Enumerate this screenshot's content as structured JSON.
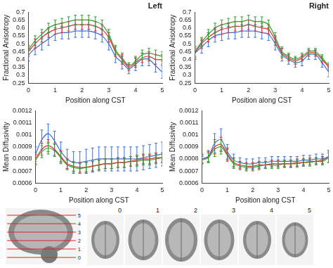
{
  "chart_data": [
    {
      "type": "line",
      "title": "Left",
      "xlabel": "Position along CST",
      "ylabel": "Fractional Anisotropy",
      "grid": false,
      "x": [
        0,
        0.25,
        0.5,
        0.75,
        1,
        1.25,
        1.5,
        1.75,
        2,
        2.25,
        2.5,
        2.75,
        3,
        3.25,
        3.5,
        3.75,
        4,
        4.25,
        4.5,
        4.75,
        5
      ],
      "xlim": [
        0,
        5
      ],
      "xticks": [
        0,
        1,
        2,
        3,
        4,
        5
      ],
      "ylim": [
        0.25,
        0.7
      ],
      "yticks": [
        0.25,
        0.3,
        0.35,
        0.4,
        0.45,
        0.5,
        0.55,
        0.6,
        0.65,
        0.7
      ],
      "series": [
        {
          "color": "#3a6fd8",
          "values": [
            0.43,
            0.47,
            0.5,
            0.53,
            0.56,
            0.57,
            0.57,
            0.58,
            0.58,
            0.58,
            0.57,
            0.55,
            0.5,
            0.42,
            0.38,
            0.34,
            0.37,
            0.4,
            0.4,
            0.36,
            0.32
          ],
          "error": [
            0.04,
            0.04,
            0.04,
            0.04,
            0.04,
            0.04,
            0.04,
            0.04,
            0.04,
            0.04,
            0.04,
            0.04,
            0.04,
            0.04,
            0.04,
            0.03,
            0.04,
            0.04,
            0.04,
            0.04,
            0.04
          ]
        },
        {
          "color": "#e03030",
          "values": [
            0.45,
            0.5,
            0.54,
            0.57,
            0.59,
            0.6,
            0.61,
            0.62,
            0.62,
            0.62,
            0.61,
            0.59,
            0.54,
            0.45,
            0.4,
            0.35,
            0.38,
            0.41,
            0.42,
            0.4,
            0.4
          ],
          "error": [
            0.03,
            0.03,
            0.03,
            0.03,
            0.03,
            0.03,
            0.03,
            0.03,
            0.03,
            0.03,
            0.03,
            0.03,
            0.03,
            0.03,
            0.03,
            0.02,
            0.03,
            0.03,
            0.03,
            0.03,
            0.03
          ]
        },
        {
          "color": "#2e9e2e",
          "values": [
            0.46,
            0.52,
            0.56,
            0.6,
            0.62,
            0.63,
            0.64,
            0.65,
            0.65,
            0.65,
            0.64,
            0.62,
            0.56,
            0.46,
            0.41,
            0.36,
            0.39,
            0.43,
            0.44,
            0.43,
            0.42
          ],
          "error": [
            0.03,
            0.03,
            0.03,
            0.03,
            0.03,
            0.03,
            0.03,
            0.03,
            0.03,
            0.03,
            0.03,
            0.03,
            0.03,
            0.03,
            0.03,
            0.02,
            0.03,
            0.03,
            0.03,
            0.03,
            0.03
          ]
        }
      ]
    },
    {
      "type": "line",
      "title": "Right",
      "xlabel": "Position along CST",
      "ylabel": "Fractional Anisotropy",
      "grid": false,
      "x": [
        0,
        0.25,
        0.5,
        0.75,
        1,
        1.25,
        1.5,
        1.75,
        2,
        2.25,
        2.5,
        2.75,
        3,
        3.25,
        3.5,
        3.75,
        4,
        4.25,
        4.5,
        4.75,
        5
      ],
      "xlim": [
        0,
        5
      ],
      "xticks": [
        0,
        1,
        2,
        3,
        4,
        5
      ],
      "ylim": [
        0.25,
        0.7
      ],
      "yticks": [
        0.25,
        0.3,
        0.35,
        0.4,
        0.45,
        0.5,
        0.55,
        0.6,
        0.65,
        0.7
      ],
      "series": [
        {
          "color": "#3a6fd8",
          "values": [
            0.44,
            0.48,
            0.52,
            0.55,
            0.56,
            0.57,
            0.57,
            0.58,
            0.58,
            0.58,
            0.57,
            0.56,
            0.5,
            0.43,
            0.4,
            0.38,
            0.39,
            0.43,
            0.43,
            0.38,
            0.32
          ],
          "error": [
            0.04,
            0.04,
            0.04,
            0.04,
            0.04,
            0.04,
            0.04,
            0.04,
            0.04,
            0.04,
            0.04,
            0.04,
            0.04,
            0.04,
            0.03,
            0.03,
            0.03,
            0.03,
            0.03,
            0.03,
            0.03
          ]
        },
        {
          "color": "#e03030",
          "values": [
            0.44,
            0.5,
            0.54,
            0.57,
            0.59,
            0.6,
            0.61,
            0.61,
            0.62,
            0.61,
            0.6,
            0.59,
            0.52,
            0.44,
            0.41,
            0.39,
            0.41,
            0.44,
            0.44,
            0.4,
            0.35
          ],
          "error": [
            0.03,
            0.03,
            0.03,
            0.03,
            0.03,
            0.03,
            0.03,
            0.03,
            0.03,
            0.03,
            0.03,
            0.03,
            0.03,
            0.03,
            0.02,
            0.02,
            0.02,
            0.02,
            0.02,
            0.02,
            0.02
          ]
        },
        {
          "color": "#2e9e2e",
          "values": [
            0.45,
            0.51,
            0.56,
            0.6,
            0.62,
            0.63,
            0.64,
            0.64,
            0.65,
            0.64,
            0.64,
            0.62,
            0.54,
            0.45,
            0.42,
            0.4,
            0.42,
            0.45,
            0.45,
            0.41,
            0.36
          ],
          "error": [
            0.03,
            0.03,
            0.03,
            0.03,
            0.03,
            0.03,
            0.03,
            0.03,
            0.03,
            0.03,
            0.03,
            0.03,
            0.03,
            0.03,
            0.02,
            0.02,
            0.02,
            0.02,
            0.02,
            0.02,
            0.02
          ]
        }
      ]
    },
    {
      "type": "line",
      "xlabel": "Position along CST",
      "ylabel": "Mean Diffusivity",
      "grid": false,
      "x": [
        0,
        0.25,
        0.5,
        0.75,
        1,
        1.25,
        1.5,
        1.75,
        2,
        2.25,
        2.5,
        2.75,
        3,
        3.25,
        3.5,
        3.75,
        4,
        4.25,
        4.5,
        4.75,
        5
      ],
      "xlim": [
        0,
        5
      ],
      "xticks": [
        0,
        1,
        2,
        3,
        4,
        5
      ],
      "ylim": [
        0.0006,
        0.0012
      ],
      "yticks": [
        0.0006,
        0.0007,
        0.0008,
        0.0009,
        0.001,
        0.0011,
        0.0012
      ],
      "series": [
        {
          "color": "#3a6fd8",
          "values": [
            0.00084,
            0.00096,
            0.00101,
            0.00095,
            0.00086,
            0.0008,
            0.00077,
            0.00077,
            0.00078,
            0.00079,
            0.0008,
            0.0008,
            0.0008,
            0.0008,
            0.0008,
            0.0008,
            0.0008,
            0.00081,
            0.00082,
            0.00083,
            0.00084
          ],
          "error": [
            6e-05,
            8e-05,
            8e-05,
            8e-05,
            8e-05,
            8e-05,
            9e-05,
            9e-05,
            0.0001,
            0.0001,
            0.0001,
            0.0001,
            0.0001,
            0.0001,
            0.0001,
            0.0001,
            0.0001,
            0.0001,
            0.0001,
            0.0001,
            0.0001
          ]
        },
        {
          "color": "#e03030",
          "values": [
            0.0008,
            0.00088,
            0.00091,
            0.00088,
            0.00082,
            0.00076,
            0.00074,
            0.00073,
            0.00073,
            0.00074,
            0.00075,
            0.00076,
            0.00076,
            0.00077,
            0.00077,
            0.00078,
            0.00079,
            0.0008,
            0.0008,
            0.00081,
            0.00081
          ],
          "error": [
            4e-05,
            5e-05,
            5e-05,
            5e-05,
            5e-05,
            4e-05,
            4e-05,
            4e-05,
            4e-05,
            4e-05,
            4e-05,
            4e-05,
            4e-05,
            4e-05,
            4e-05,
            4e-05,
            4e-05,
            4e-05,
            4e-05,
            4e-05,
            4e-05
          ]
        },
        {
          "color": "#2e9e2e",
          "values": [
            0.00079,
            0.00086,
            0.00089,
            0.00087,
            0.00081,
            0.00075,
            0.00073,
            0.00072,
            0.00073,
            0.00074,
            0.00075,
            0.00076,
            0.00076,
            0.00077,
            0.00077,
            0.00078,
            0.00078,
            0.00079,
            0.00079,
            0.0008,
            0.00081
          ],
          "error": [
            4e-05,
            5e-05,
            5e-05,
            5e-05,
            5e-05,
            4e-05,
            4e-05,
            4e-05,
            4e-05,
            4e-05,
            4e-05,
            4e-05,
            4e-05,
            4e-05,
            4e-05,
            4e-05,
            4e-05,
            4e-05,
            4e-05,
            4e-05,
            4e-05
          ]
        }
      ]
    },
    {
      "type": "line",
      "xlabel": "Position along CST",
      "ylabel": "Mean Diffusivity",
      "grid": false,
      "x": [
        0,
        0.25,
        0.5,
        0.75,
        1,
        1.25,
        1.5,
        1.75,
        2,
        2.25,
        2.5,
        2.75,
        3,
        3.25,
        3.5,
        3.75,
        4,
        4.25,
        4.5,
        4.75,
        5
      ],
      "xlim": [
        0,
        5
      ],
      "xticks": [
        0,
        1,
        2,
        3,
        4,
        5
      ],
      "ylim": [
        0.0006,
        0.0012
      ],
      "yticks": [
        0.0006,
        0.0007,
        0.0008,
        0.0009,
        0.001,
        0.0011,
        0.0012
      ],
      "series": [
        {
          "color": "#3a6fd8",
          "values": [
            0.0008,
            0.00082,
            0.00093,
            0.00096,
            0.00086,
            0.00079,
            0.00077,
            0.00076,
            0.00076,
            0.00077,
            0.00077,
            0.00078,
            0.00078,
            0.00078,
            0.00078,
            0.00078,
            0.00079,
            0.00079,
            0.0008,
            0.0008,
            0.00082
          ],
          "error": [
            4e-05,
            5e-05,
            8e-05,
            9e-05,
            6e-05,
            5e-05,
            4e-05,
            4e-05,
            4e-05,
            4e-05,
            4e-05,
            4e-05,
            4e-05,
            4e-05,
            4e-05,
            4e-05,
            4e-05,
            4e-05,
            4e-05,
            4e-05,
            5e-05
          ]
        },
        {
          "color": "#e03030",
          "values": [
            0.0008,
            0.00082,
            0.0009,
            0.00092,
            0.00084,
            0.00077,
            0.00075,
            0.00074,
            0.00074,
            0.00075,
            0.00075,
            0.00076,
            0.00076,
            0.00076,
            0.00076,
            0.00077,
            0.00077,
            0.00078,
            0.00078,
            0.00079,
            0.00082
          ],
          "error": [
            3e-05,
            4e-05,
            6e-05,
            6e-05,
            5e-05,
            4e-05,
            3e-05,
            3e-05,
            3e-05,
            3e-05,
            3e-05,
            3e-05,
            3e-05,
            3e-05,
            3e-05,
            3e-05,
            3e-05,
            3e-05,
            3e-05,
            3e-05,
            5e-05
          ]
        },
        {
          "color": "#2e9e2e",
          "values": [
            0.00079,
            0.00081,
            0.00088,
            0.0009,
            0.00083,
            0.00076,
            0.00074,
            0.00073,
            0.00073,
            0.00074,
            0.00075,
            0.00075,
            0.00075,
            0.00076,
            0.00076,
            0.00076,
            0.00077,
            0.00077,
            0.00078,
            0.00078,
            0.00081
          ],
          "error": [
            3e-05,
            4e-05,
            6e-05,
            6e-05,
            5e-05,
            4e-05,
            3e-05,
            3e-05,
            3e-05,
            3e-05,
            3e-05,
            3e-05,
            3e-05,
            3e-05,
            3e-05,
            3e-05,
            3e-05,
            3e-05,
            3e-05,
            3e-05,
            4e-05
          ]
        }
      ]
    }
  ],
  "brain_panel": {
    "sagittal_slice_labels": [
      0,
      1,
      2,
      3,
      4,
      5
    ],
    "axial_slice_labels": [
      0,
      1,
      2,
      3,
      4,
      5
    ]
  }
}
